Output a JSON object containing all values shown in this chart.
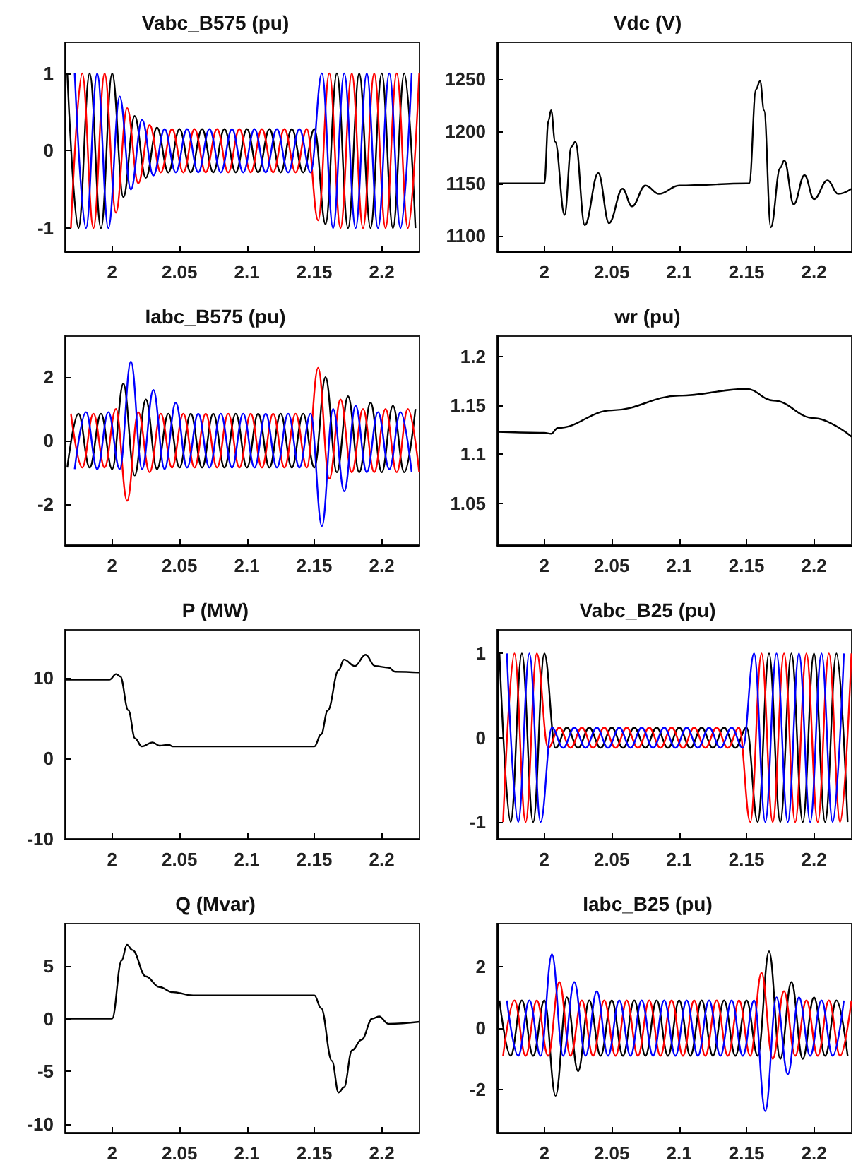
{
  "chart_data": [
    {
      "type": "line",
      "title": "Vabc_B575 (pu)",
      "xlim": [
        1.965,
        2.228
      ],
      "xticks": [
        2,
        2.05,
        2.1,
        2.15,
        2.2
      ],
      "ylim": [
        -1.3,
        1.4
      ],
      "yticks": [
        -1,
        0,
        1
      ],
      "grid": false,
      "series": [
        {
          "color": "#000000",
          "x": [
            1.9667,
            1.975,
            1.9833,
            1.9917,
            2,
            2.0083,
            2.0167,
            2.025,
            2.0333,
            2.0417,
            2.05,
            2.0583,
            2.0667,
            2.075,
            2.0833,
            2.0917,
            2.1,
            2.1083,
            2.1167,
            2.125,
            2.1333,
            2.1417,
            2.15,
            2.1583,
            2.1667,
            2.175,
            2.1833,
            2.1917,
            2.2,
            2.2083,
            2.2167,
            2.225
          ],
          "values": [
            1,
            -1,
            1,
            -1,
            1,
            -0.6,
            0.45,
            -0.35,
            0.3,
            -0.28,
            0.28,
            -0.28,
            0.28,
            -0.28,
            0.28,
            -0.28,
            0.28,
            -0.28,
            0.28,
            -0.28,
            0.28,
            -0.28,
            0.28,
            -0.95,
            1,
            -1,
            1,
            -1,
            1,
            -1,
            1,
            -1
          ]
        },
        {
          "color": "#ff0000",
          "x": [
            1.9694,
            1.9778,
            1.9861,
            1.9944,
            2.0028,
            2.0111,
            2.0194,
            2.0278,
            2.0361,
            2.0444,
            2.0528,
            2.0611,
            2.0694,
            2.0778,
            2.0861,
            2.0944,
            2.1028,
            2.1111,
            2.1194,
            2.1278,
            2.1361,
            2.1444,
            2.1528,
            2.1611,
            2.1694,
            2.1778,
            2.1861,
            2.1944,
            2.2028,
            2.2111,
            2.2194,
            2.2278
          ],
          "values": [
            -1,
            1,
            -1,
            1,
            -0.8,
            0.55,
            -0.42,
            0.33,
            -0.28,
            0.28,
            -0.28,
            0.28,
            -0.28,
            0.28,
            -0.28,
            0.28,
            -0.28,
            0.28,
            -0.28,
            0.28,
            -0.28,
            0.28,
            -0.9,
            1,
            -1,
            1,
            -1,
            1,
            -1,
            1,
            -1,
            1
          ]
        },
        {
          "color": "#0000ff",
          "x": [
            1.9722,
            1.9806,
            1.9889,
            1.9972,
            2.0056,
            2.0139,
            2.0222,
            2.0306,
            2.0389,
            2.0472,
            2.0556,
            2.0639,
            2.0722,
            2.0806,
            2.0889,
            2.0972,
            2.1056,
            2.1139,
            2.1222,
            2.1306,
            2.1389,
            2.1472,
            2.1556,
            2.1639,
            2.1722,
            2.1806,
            2.1889,
            2.1972,
            2.2056,
            2.2139,
            2.2222
          ],
          "values": [
            1,
            -1,
            1,
            -1,
            0.7,
            -0.5,
            0.4,
            -0.32,
            0.28,
            -0.28,
            0.28,
            -0.28,
            0.28,
            -0.28,
            0.28,
            -0.28,
            0.28,
            -0.28,
            0.28,
            -0.28,
            0.28,
            -0.28,
            1,
            -1,
            1,
            -1,
            1,
            -1,
            1,
            -1,
            1
          ]
        }
      ]
    },
    {
      "type": "line",
      "title": "Vdc (V)",
      "xlim": [
        1.965,
        2.228
      ],
      "xticks": [
        2,
        2.05,
        2.1,
        2.15,
        2.2
      ],
      "ylim": [
        1085,
        1285
      ],
      "yticks": [
        1100,
        1150,
        1200,
        1250
      ],
      "grid": false,
      "series": [
        {
          "color": "#000000",
          "x": [
            1.965,
            2,
            2.003,
            2.005,
            2.008,
            2.015,
            2.02,
            2.023,
            2.03,
            2.04,
            2.048,
            2.058,
            2.065,
            2.075,
            2.085,
            2.1,
            2.15,
            2.152,
            2.157,
            2.16,
            2.163,
            2.168,
            2.175,
            2.178,
            2.185,
            2.193,
            2.2,
            2.21,
            2.218,
            2.228
          ],
          "values": [
            1150,
            1150,
            1210,
            1220,
            1190,
            1120,
            1185,
            1190,
            1110,
            1160,
            1112,
            1145,
            1128,
            1148,
            1140,
            1148,
            1150,
            1150,
            1240,
            1248,
            1220,
            1108,
            1165,
            1172,
            1130,
            1158,
            1135,
            1153,
            1140,
            1145
          ]
        }
      ]
    },
    {
      "type": "line",
      "title": "Iabc_B575 (pu)",
      "xlim": [
        1.965,
        2.228
      ],
      "xticks": [
        2,
        2.05,
        2.1,
        2.15,
        2.2
      ],
      "ylim": [
        -3.3,
        3.3
      ],
      "yticks": [
        -2,
        0,
        2
      ],
      "grid": false,
      "series": [
        {
          "color": "#000000",
          "x": [
            1.9667,
            1.975,
            1.9833,
            1.9917,
            2,
            2.0083,
            2.0167,
            2.025,
            2.0333,
            2.0417,
            2.05,
            2.0583,
            2.0667,
            2.075,
            2.0833,
            2.0917,
            2.1,
            2.1083,
            2.1167,
            2.125,
            2.1333,
            2.1417,
            2.15,
            2.1583,
            2.1667,
            2.175,
            2.1833,
            2.1917,
            2.2,
            2.2083,
            2.2167,
            2.225
          ],
          "values": [
            -0.85,
            0.85,
            -0.85,
            0.85,
            -0.9,
            1.8,
            -1.1,
            1.3,
            -0.9,
            0.85,
            -0.85,
            0.85,
            -0.85,
            0.85,
            -0.85,
            0.85,
            -0.85,
            0.85,
            -0.85,
            0.85,
            -0.85,
            0.85,
            -0.85,
            2.0,
            -1.0,
            1.4,
            -1.0,
            1.2,
            -1,
            1.1,
            -1,
            1.0
          ]
        },
        {
          "color": "#ff0000",
          "x": [
            1.9694,
            1.9778,
            1.9861,
            1.9944,
            2.0028,
            2.0111,
            2.0194,
            2.0278,
            2.0361,
            2.0444,
            2.0528,
            2.0611,
            2.0694,
            2.0778,
            2.0861,
            2.0944,
            2.1028,
            2.1111,
            2.1194,
            2.1278,
            2.1361,
            2.1444,
            2.1528,
            2.1611,
            2.1694,
            2.1778,
            2.1861,
            2.1944,
            2.2028,
            2.2111,
            2.2194,
            2.2278
          ],
          "values": [
            0.85,
            -0.85,
            0.85,
            -0.85,
            1.0,
            -1.9,
            0.9,
            -1.0,
            0.85,
            -0.85,
            0.85,
            -0.85,
            0.85,
            -0.85,
            0.85,
            -0.85,
            0.85,
            -0.85,
            0.85,
            -0.85,
            0.85,
            -0.85,
            2.3,
            -1.2,
            1.3,
            -1.0,
            1.0,
            -1,
            1,
            -1,
            1,
            -1
          ]
        },
        {
          "color": "#0000ff",
          "x": [
            1.9722,
            1.9806,
            1.9889,
            1.9972,
            2.0056,
            2.0139,
            2.0222,
            2.0306,
            2.0389,
            2.0472,
            2.0556,
            2.0639,
            2.0722,
            2.0806,
            2.0889,
            2.0972,
            2.1056,
            2.1139,
            2.1222,
            2.1306,
            2.1389,
            2.1472,
            2.1556,
            2.1639,
            2.1722,
            2.1806,
            2.1889,
            2.1972,
            2.2056,
            2.2139,
            2.2222
          ],
          "values": [
            -0.9,
            0.9,
            -0.9,
            0.9,
            -0.9,
            2.5,
            -0.9,
            1.6,
            -0.9,
            1.2,
            -0.85,
            0.85,
            -0.85,
            0.85,
            -0.85,
            0.85,
            -0.85,
            0.85,
            -0.85,
            0.85,
            -0.85,
            0.85,
            -2.7,
            1.0,
            -1.6,
            1.1,
            -1.0,
            0.9,
            -0.9,
            0.9,
            -1.0
          ]
        }
      ]
    },
    {
      "type": "line",
      "title": "wr (pu)",
      "xlim": [
        1.965,
        2.228
      ],
      "xticks": [
        2,
        2.05,
        2.1,
        2.15,
        2.2
      ],
      "ylim": [
        1.007,
        1.221
      ],
      "yticks": [
        1.05,
        1.1,
        1.15,
        1.2
      ],
      "grid": false,
      "series": [
        {
          "color": "#000000",
          "x": [
            1.965,
            2,
            2.005,
            2.01,
            2.05,
            2.1,
            2.15,
            2.17,
            2.2,
            2.228
          ],
          "values": [
            1.123,
            1.122,
            1.121,
            1.127,
            1.145,
            1.16,
            1.167,
            1.155,
            1.137,
            1.118
          ]
        }
      ]
    },
    {
      "type": "line",
      "title": "P (MW)",
      "xlim": [
        1.965,
        2.228
      ],
      "xticks": [
        2,
        2.05,
        2.1,
        2.15,
        2.2
      ],
      "ylim": [
        -10,
        16
      ],
      "yticks": [
        -10,
        0,
        10
      ],
      "grid": false,
      "series": [
        {
          "color": "#000000",
          "x": [
            1.965,
            1.998,
            2.003,
            2.006,
            2.012,
            2.017,
            2.022,
            2.03,
            2.035,
            2.042,
            2.045,
            2.15,
            2.155,
            2.16,
            2.168,
            2.172,
            2.18,
            2.188,
            2.195,
            2.205,
            2.21,
            2.228
          ],
          "values": [
            9.8,
            9.8,
            10.5,
            10.2,
            6,
            2.5,
            1.5,
            2,
            1.6,
            1.7,
            1.5,
            1.5,
            3,
            6,
            11,
            12.3,
            11.5,
            12.9,
            11.5,
            11.3,
            10.8,
            10.7
          ]
        }
      ]
    },
    {
      "type": "line",
      "title": "Vabc_B25 (pu)",
      "xlim": [
        1.965,
        2.228
      ],
      "xticks": [
        2,
        2.05,
        2.1,
        2.15,
        2.2
      ],
      "ylim": [
        -1.2,
        1.28
      ],
      "yticks": [
        -1,
        0,
        1
      ],
      "grid": false,
      "series": [
        {
          "color": "#000000",
          "x": [
            1.9667,
            1.975,
            1.9833,
            1.9917,
            2,
            2.0083,
            2.0167,
            2.025,
            2.0333,
            2.0417,
            2.05,
            2.0583,
            2.0667,
            2.075,
            2.0833,
            2.0917,
            2.1,
            2.1083,
            2.1167,
            2.125,
            2.1333,
            2.1417,
            2.15,
            2.1583,
            2.1667,
            2.175,
            2.1833,
            2.1917,
            2.2,
            2.2083,
            2.2167,
            2.225
          ],
          "values": [
            1,
            -1,
            1,
            -1,
            1,
            -0.12,
            0.12,
            -0.12,
            0.12,
            -0.12,
            0.12,
            -0.12,
            0.12,
            -0.12,
            0.12,
            -0.12,
            0.12,
            -0.12,
            0.12,
            -0.12,
            0.12,
            -0.12,
            0.12,
            -1,
            1,
            -1,
            1,
            -1,
            1,
            -1,
            1,
            -1
          ]
        },
        {
          "color": "#ff0000",
          "x": [
            1.9694,
            1.9778,
            1.9861,
            1.9944,
            2.0028,
            2.0111,
            2.0194,
            2.0278,
            2.0361,
            2.0444,
            2.0528,
            2.0611,
            2.0694,
            2.0778,
            2.0861,
            2.0944,
            2.1028,
            2.1111,
            2.1194,
            2.1278,
            2.1361,
            2.1444,
            2.1528,
            2.1611,
            2.1694,
            2.1778,
            2.1861,
            2.1944,
            2.2028,
            2.2111,
            2.2194,
            2.2278
          ],
          "values": [
            -1,
            1,
            -1,
            1,
            -0.12,
            0.12,
            -0.12,
            0.12,
            -0.12,
            0.12,
            -0.12,
            0.12,
            -0.12,
            0.12,
            -0.12,
            0.12,
            -0.12,
            0.12,
            -0.12,
            0.12,
            -0.12,
            0.12,
            -1,
            1,
            -1,
            1,
            -1,
            1,
            -1,
            1,
            -1,
            1
          ]
        },
        {
          "color": "#0000ff",
          "x": [
            1.9722,
            1.9806,
            1.9889,
            1.9972,
            2.0056,
            2.0139,
            2.0222,
            2.0306,
            2.0389,
            2.0472,
            2.0556,
            2.0639,
            2.0722,
            2.0806,
            2.0889,
            2.0972,
            2.1056,
            2.1139,
            2.1222,
            2.1306,
            2.1389,
            2.1472,
            2.1556,
            2.1639,
            2.1722,
            2.1806,
            2.1889,
            2.1972,
            2.2056,
            2.2139,
            2.2222
          ],
          "values": [
            1,
            -1,
            1,
            -1,
            0.12,
            -0.12,
            0.12,
            -0.12,
            0.12,
            -0.12,
            0.12,
            -0.12,
            0.12,
            -0.12,
            0.12,
            -0.12,
            0.12,
            -0.12,
            0.12,
            -0.12,
            0.12,
            -0.12,
            1,
            -1,
            1,
            -1,
            1,
            -1,
            1,
            -1,
            1
          ]
        }
      ]
    },
    {
      "type": "line",
      "title": "Q (Mvar)",
      "xlim": [
        1.965,
        2.228
      ],
      "xticks": [
        2,
        2.05,
        2.1,
        2.15,
        2.2
      ],
      "ylim": [
        -10.8,
        9
      ],
      "yticks": [
        -10,
        -5,
        0,
        5
      ],
      "grid": false,
      "series": [
        {
          "color": "#000000",
          "x": [
            1.965,
            2,
            2.007,
            2.011,
            2.015,
            2.025,
            2.035,
            2.045,
            2.06,
            2.15,
            2.155,
            2.163,
            2.168,
            2.172,
            2.178,
            2.185,
            2.193,
            2.198,
            2.205,
            2.228
          ],
          "values": [
            0,
            0,
            5.5,
            7,
            6.5,
            4,
            3,
            2.5,
            2.2,
            2.2,
            1,
            -4,
            -7,
            -6.5,
            -3,
            -2,
            0,
            0.2,
            -0.5,
            -0.3
          ]
        }
      ]
    },
    {
      "type": "line",
      "title": "Iabc_B25 (pu)",
      "xlim": [
        1.965,
        2.228
      ],
      "xticks": [
        2,
        2.05,
        2.1,
        2.15,
        2.2
      ],
      "ylim": [
        -3.4,
        3.4
      ],
      "yticks": [
        -2,
        0,
        2
      ],
      "grid": false,
      "series": [
        {
          "color": "#000000",
          "x": [
            1.9667,
            1.975,
            1.9833,
            1.9917,
            2,
            2.0083,
            2.0167,
            2.025,
            2.0333,
            2.0417,
            2.05,
            2.0583,
            2.0667,
            2.075,
            2.0833,
            2.0917,
            2.1,
            2.1083,
            2.1167,
            2.125,
            2.1333,
            2.1417,
            2.15,
            2.1583,
            2.1667,
            2.175,
            2.1833,
            2.1917,
            2.2,
            2.2083,
            2.2167,
            2.225
          ],
          "values": [
            0.9,
            -0.9,
            0.9,
            -0.9,
            0.9,
            -2.2,
            1.0,
            -1.4,
            0.9,
            -0.9,
            0.9,
            -0.9,
            0.9,
            -0.9,
            0.9,
            -0.9,
            0.9,
            -0.9,
            0.9,
            -0.9,
            0.9,
            -0.9,
            0.9,
            -0.9,
            2.5,
            -1.0,
            1.5,
            -1.0,
            1.0,
            -0.9,
            0.9,
            -0.9
          ]
        },
        {
          "color": "#ff0000",
          "x": [
            1.9694,
            1.9778,
            1.9861,
            1.9944,
            2.0028,
            2.0111,
            2.0194,
            2.0278,
            2.0361,
            2.0444,
            2.0528,
            2.0611,
            2.0694,
            2.0778,
            2.0861,
            2.0944,
            2.1028,
            2.1111,
            2.1194,
            2.1278,
            2.1361,
            2.1444,
            2.1528,
            2.1611,
            2.1694,
            2.1778,
            2.1861,
            2.1944,
            2.2028,
            2.2111,
            2.2194,
            2.2278
          ],
          "values": [
            -0.9,
            0.9,
            -0.9,
            0.9,
            -0.9,
            1.5,
            -0.9,
            0.9,
            -0.9,
            0.9,
            -0.9,
            0.9,
            -0.9,
            0.9,
            -0.9,
            0.9,
            -0.9,
            0.9,
            -0.9,
            0.9,
            -0.9,
            0.9,
            -0.9,
            1.8,
            -1.0,
            1.2,
            -0.9,
            0.9,
            -0.9,
            0.9,
            -0.9,
            0.9
          ]
        },
        {
          "color": "#0000ff",
          "x": [
            1.9722,
            1.9806,
            1.9889,
            1.9972,
            2.0056,
            2.0139,
            2.0222,
            2.0306,
            2.0389,
            2.0472,
            2.0556,
            2.0639,
            2.0722,
            2.0806,
            2.0889,
            2.0972,
            2.1056,
            2.1139,
            2.1222,
            2.1306,
            2.1389,
            2.1472,
            2.1556,
            2.1639,
            2.1722,
            2.1806,
            2.1889,
            2.1972,
            2.2056,
            2.2139,
            2.2222
          ],
          "values": [
            0.9,
            -0.9,
            0.9,
            -0.9,
            2.4,
            -0.9,
            1.5,
            -0.9,
            1.2,
            -0.9,
            0.9,
            -0.9,
            0.9,
            -0.9,
            0.9,
            -0.9,
            0.9,
            -0.9,
            0.9,
            -0.9,
            0.9,
            -0.9,
            0.9,
            -2.7,
            1.0,
            -1.5,
            1.0,
            -0.9,
            0.9,
            -0.9,
            0.9
          ]
        }
      ]
    }
  ]
}
